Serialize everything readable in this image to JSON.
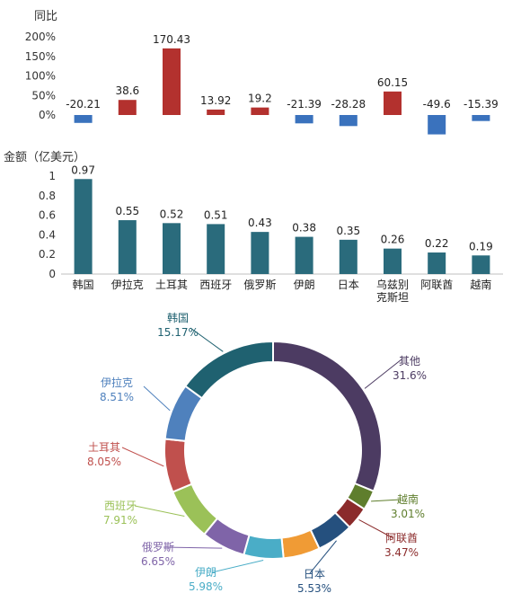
{
  "chart_data": [
    {
      "type": "bar",
      "ylabel": "同比",
      "ylim": [
        -50,
        200
      ],
      "yticks": [
        "200%",
        "150%",
        "100%",
        "50%",
        "0%"
      ],
      "categories": [
        "韩国",
        "伊拉克",
        "土耳其",
        "西班牙",
        "俄罗斯",
        "伊朗",
        "日本",
        "乌兹别克斯坦",
        "阿联酋",
        "越南"
      ],
      "values": [
        -20.21,
        38.6,
        170.43,
        13.92,
        19.2,
        -21.39,
        -28.28,
        60.15,
        -49.6,
        -15.39
      ],
      "value_labels": [
        "-20.21",
        "38.6",
        "170.43",
        "13.92",
        "19.2",
        "-21.39",
        "-28.28",
        "60.15",
        "-49.6",
        "-15.39"
      ],
      "colors": {
        "positive": "#b3312e",
        "negative": "#3a72bd"
      }
    },
    {
      "type": "bar",
      "ylabel": "金额（亿美元）",
      "ylim": [
        0,
        1
      ],
      "yticks": [
        "1",
        "0.8",
        "0.6",
        "0.4",
        "0.2",
        "0"
      ],
      "categories": [
        "韩国",
        "伊拉克",
        "土耳其",
        "西班牙",
        "俄罗斯",
        "伊朗",
        "日本",
        "乌兹别克斯坦",
        "阿联酋",
        "越南"
      ],
      "category_lines": [
        [
          "韩国"
        ],
        [
          "伊拉克"
        ],
        [
          "土耳其"
        ],
        [
          "西班牙"
        ],
        [
          "俄罗斯"
        ],
        [
          "伊朗"
        ],
        [
          "日本"
        ],
        [
          "乌兹别",
          "克斯坦"
        ],
        [
          "阿联酋"
        ],
        [
          "越南"
        ]
      ],
      "values": [
        0.97,
        0.55,
        0.52,
        0.51,
        0.43,
        0.38,
        0.35,
        0.26,
        0.22,
        0.19
      ],
      "value_labels": [
        "0.97",
        "0.55",
        "0.52",
        "0.51",
        "0.43",
        "0.38",
        "0.35",
        "0.26",
        "0.22",
        "0.19"
      ],
      "color": "#2a6b7c"
    },
    {
      "type": "pie",
      "donut": true,
      "slices": [
        {
          "name": "其他",
          "label": "31.6%",
          "value": 31.6,
          "color": "#4c3b62"
        },
        {
          "name": "越南",
          "label": "3.01%",
          "value": 3.01,
          "color": "#5f7e2d"
        },
        {
          "name": "阿联酋",
          "label": "3.47%",
          "value": 3.47,
          "color": "#8b2b2b"
        },
        {
          "name": "日本",
          "label": "5.53%",
          "value": 5.53,
          "color": "#25507e"
        },
        {
          "name": "",
          "label": "",
          "value": 5.53,
          "color": "#f09b35"
        },
        {
          "name": "伊朗",
          "label": "5.98%",
          "value": 5.98,
          "color": "#4aadc7"
        },
        {
          "name": "俄罗斯",
          "label": "6.65%",
          "value": 6.65,
          "color": "#7f64a8"
        },
        {
          "name": "西班牙",
          "label": "7.91%",
          "value": 7.91,
          "color": "#9bc158"
        },
        {
          "name": "土耳其",
          "label": "8.05%",
          "value": 8.05,
          "color": "#c0504d"
        },
        {
          "name": "伊拉克",
          "label": "8.51%",
          "value": 8.51,
          "color": "#4f81bd"
        },
        {
          "name": "韩国",
          "label": "15.17%",
          "value": 15.17,
          "color": "#1f6170"
        }
      ]
    }
  ]
}
